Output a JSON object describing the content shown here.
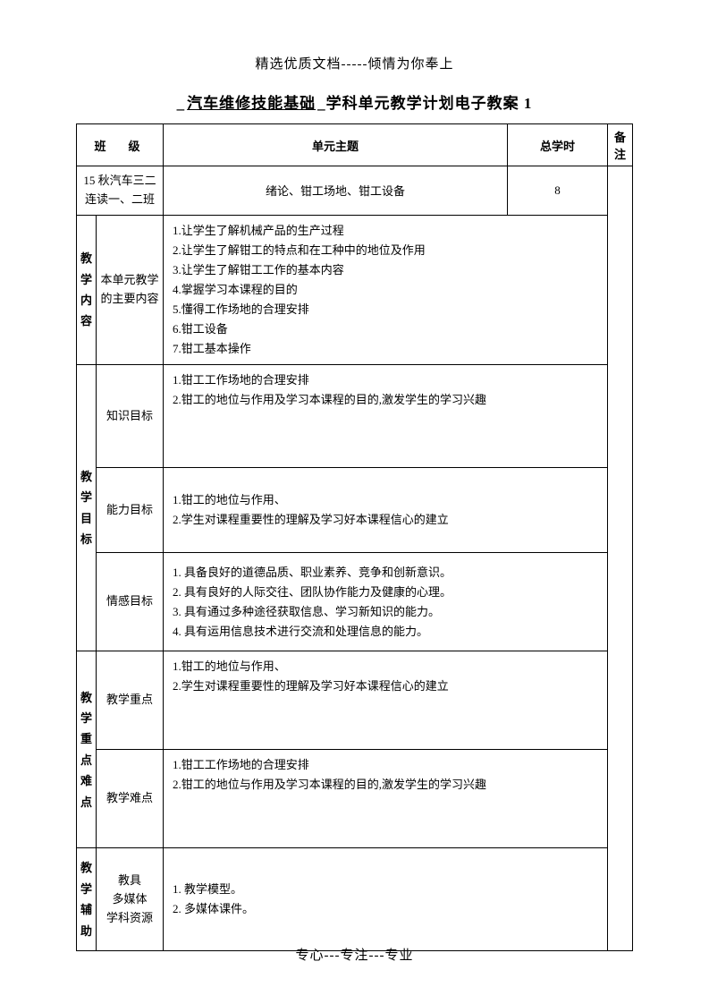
{
  "header_top": "精选优质文档-----倾情为你奉上",
  "title_prefix": "_",
  "title_subject": "汽车维修技能基础",
  "title_mid": "_学科单元教学计划电子教案 1",
  "headers": {
    "class": "班　级",
    "unit_topic": "单元主题",
    "total_hours": "总学时",
    "remark": "备注"
  },
  "row1": {
    "class": "15 秋汽车三二连读一、二班",
    "topic": "绪论、钳工场地、钳工设备",
    "hours": "8"
  },
  "sections": {
    "content": {
      "vlabel": "教学内容",
      "label": "本单元教学的主要内容",
      "text": "1.让学生了解机械产品的生产过程\n2.让学生了解钳工的特点和在工种中的地位及作用\n3.让学生了解钳工工作的基本内容\n4.掌握学习本课程的目的\n5.懂得工作场地的合理安排\n6.钳工设备\n7.钳工基本操作"
    },
    "goal": {
      "vlabel": "教学目标",
      "knowledge": {
        "label": "知识目标",
        "text": "1.钳工工作场地的合理安排\n2.钳工的地位与作用及学习本课程的目的,激发学生的学习兴趣"
      },
      "ability": {
        "label": "能力目标",
        "text": "1.钳工的地位与作用、\n2.学生对课程重要性的理解及学习好本课程信心的建立"
      },
      "emotion": {
        "label": "情感目标",
        "text": "1. 具备良好的道德品质、职业素养、竞争和创新意识。\n2. 具有良好的人际交往、团队协作能力及健康的心理。\n3. 具有通过多种途径获取信息、学习新知识的能力。\n4. 具有运用信息技术进行交流和处理信息的能力。"
      }
    },
    "keydiff": {
      "vlabel": "教学重点难点",
      "key": {
        "label": "教学重点",
        "text": "1.钳工的地位与作用、\n2.学生对课程重要性的理解及学习好本课程信心的建立"
      },
      "diff": {
        "label": "教学难点",
        "text": "1.钳工工作场地的合理安排\n2.钳工的地位与作用及学习本课程的目的,激发学生的学习兴趣"
      }
    },
    "aid": {
      "vlabel": "教学辅助",
      "label": "教具\n多媒体\n学科资源",
      "text": "1. 教学模型。\n2. 多媒体课件。"
    }
  },
  "footer_bottom": "专心---专注---专业"
}
